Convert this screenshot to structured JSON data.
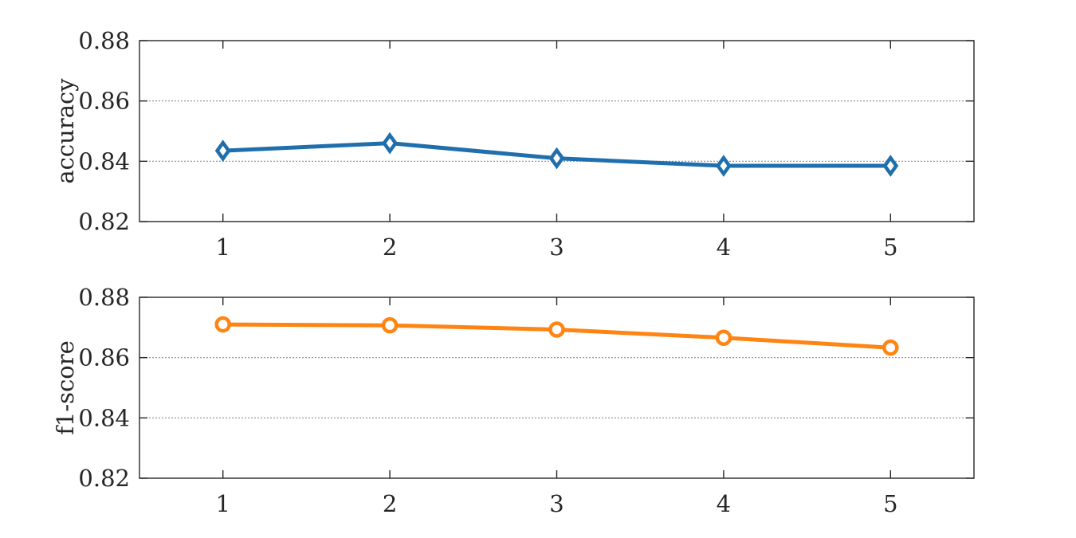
{
  "chart_data": [
    {
      "type": "line",
      "title": "",
      "xlabel": "",
      "ylabel": "accuracy",
      "x": [
        1,
        2,
        3,
        4,
        5
      ],
      "xticks": [
        "1",
        "2",
        "3",
        "4",
        "5"
      ],
      "xlim": [
        0.5,
        5.5
      ],
      "yticks": [
        "0.82",
        "0.84",
        "0.86",
        "0.88"
      ],
      "ylim": [
        0.82,
        0.88
      ],
      "grid": "y-dotted",
      "series": [
        {
          "values": [
            0.8435,
            0.846,
            0.841,
            0.8385,
            0.8385
          ],
          "color": "#1f6fad",
          "marker": "diamond"
        }
      ]
    },
    {
      "type": "line",
      "title": "",
      "xlabel": "",
      "ylabel": "f1-score",
      "x": [
        1,
        2,
        3,
        4,
        5
      ],
      "xticks": [
        "1",
        "2",
        "3",
        "4",
        "5"
      ],
      "xlim": [
        0.5,
        5.5
      ],
      "yticks": [
        "0.82",
        "0.84",
        "0.86",
        "0.88"
      ],
      "ylim": [
        0.82,
        0.88
      ],
      "grid": "y-dotted",
      "series": [
        {
          "values": [
            0.871,
            0.8707,
            0.8693,
            0.8666,
            0.8633
          ],
          "color": "#ff8412",
          "marker": "circle"
        }
      ]
    }
  ]
}
